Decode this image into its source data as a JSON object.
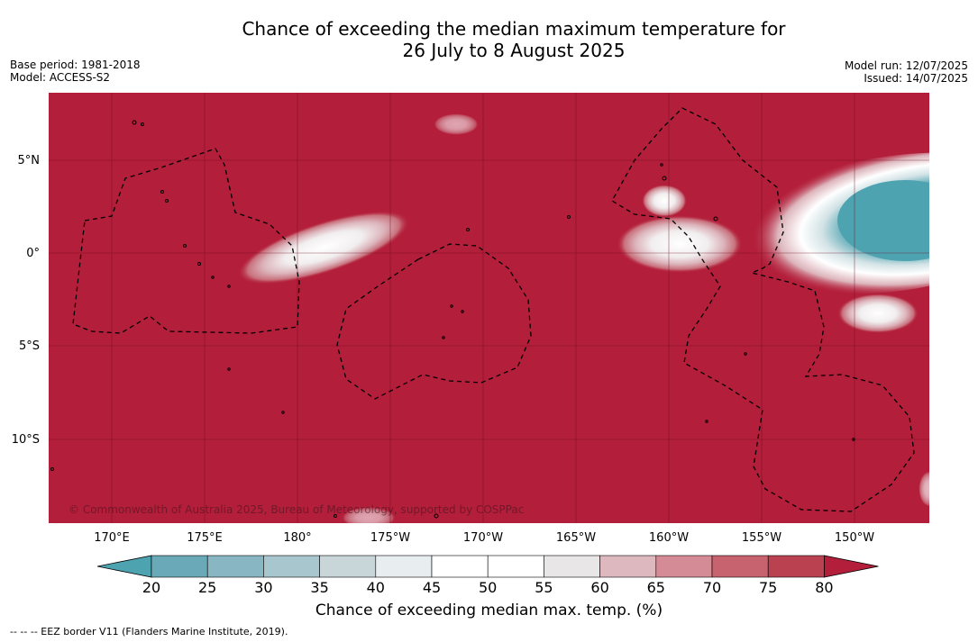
{
  "title": {
    "line1": "Chance of exceeding the median maximum temperature for",
    "line2": "26 July to 8 August 2025"
  },
  "meta_left": {
    "base_period": "Base period: 1981-2018",
    "model": "Model: ACCESS-S2"
  },
  "meta_right": {
    "model_run": "Model run: 12/07/2025",
    "issued": "Issued: 14/07/2025"
  },
  "lat_labels": [
    "5°N",
    "0°",
    "5°S",
    "10°S"
  ],
  "lon_labels": [
    "170°E",
    "175°E",
    "180°",
    "175°W",
    "170°W",
    "165°W",
    "160°W",
    "155°W",
    "150°W"
  ],
  "copyright": "© Commonwealth of Australia 2025, Bureau of Meteorology, supported by COSPPac",
  "colorbar": {
    "ticks": [
      "20",
      "25",
      "30",
      "35",
      "40",
      "45",
      "50",
      "55",
      "60",
      "65",
      "70",
      "75",
      "80"
    ],
    "colors": [
      "#6aa9b7",
      "#88b6c3",
      "#a8c6cd",
      "#c9d6d9",
      "#e8eef0",
      "#ffffff",
      "#ffffff",
      "#e8e6e7",
      "#ddb9bf",
      "#d48b95",
      "#c6636e",
      "#b94150"
    ],
    "low_extend_color": "#4ea3b1",
    "high_extend_color": "#b31e3a",
    "title": "Chance of exceeding median max. temp. (%)"
  },
  "map_colors": {
    "background": "#b31e3a",
    "cool": "#4ea3b1"
  },
  "footer": "--  --  -- EEZ border V11 (Flanders Marine Institute, 2019)."
}
